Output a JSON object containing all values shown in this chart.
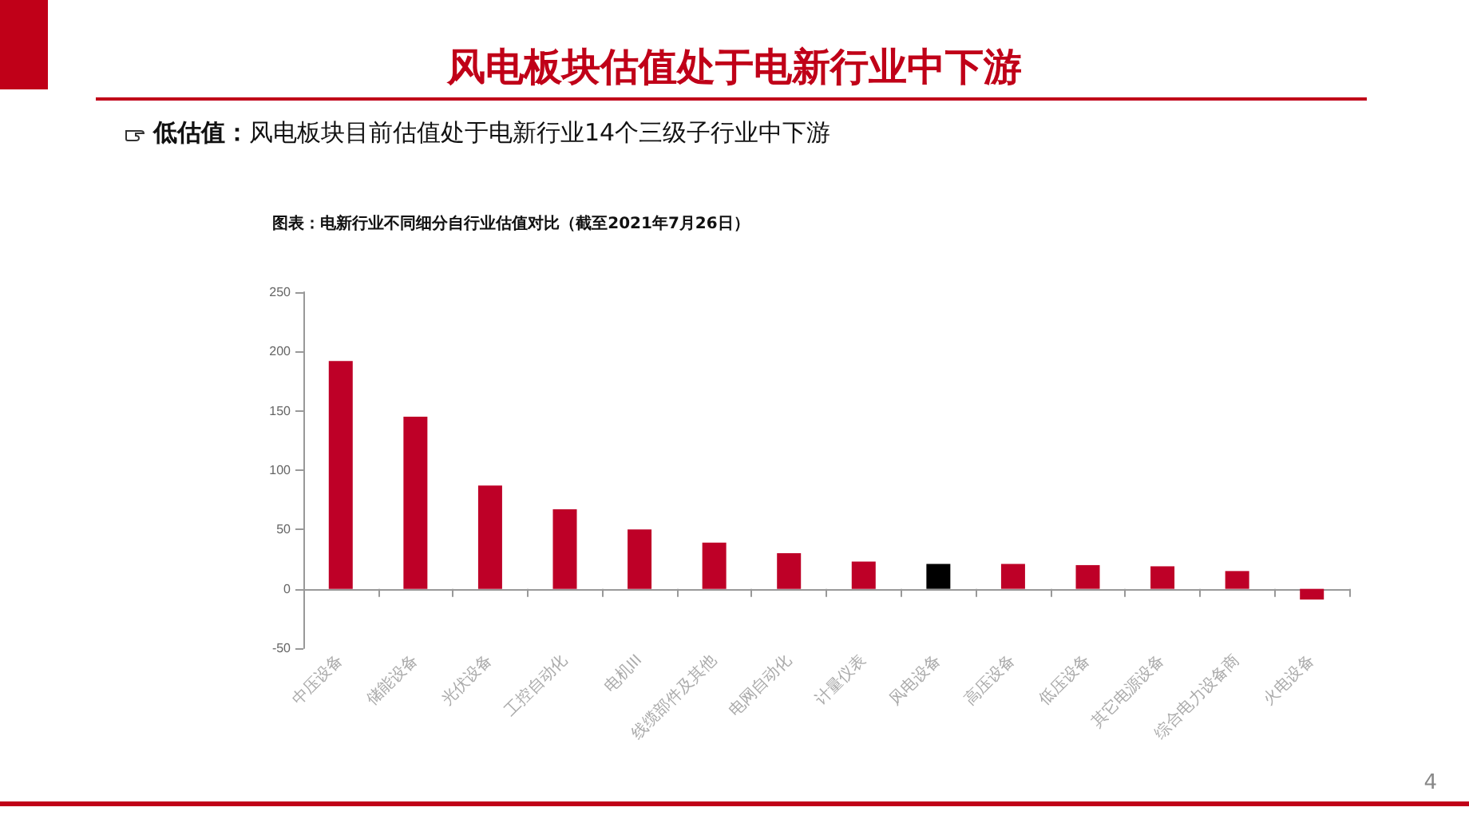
{
  "chart_data": {
    "type": "bar",
    "title": "风电板块估值处于电新行业中下游",
    "subtitle": "低估值：风电板块目前估值处于电新行业14个三级子行业中下游",
    "annotations": [
      "图表：电新行业不同细分自行业估值对比（截至2021年7月26日）",
      "4"
    ],
    "categories": [
      "中压设备",
      "储能设备",
      "光伏设备",
      "工控自动化",
      "电机III",
      "线缆部件及其他",
      "电网自动化",
      "计量仪表",
      "风电设备",
      "高压设备",
      "低压设备",
      "其它电源设备",
      "综合电力设备商",
      "火电设备"
    ],
    "values": [
      192,
      145,
      87,
      67,
      50,
      39,
      30,
      23,
      21,
      21,
      20,
      19,
      15,
      -9
    ],
    "colors": [
      "#be0027",
      "#be0027",
      "#be0027",
      "#be0027",
      "#be0027",
      "#be0027",
      "#be0027",
      "#be0027",
      "#000000",
      "#be0027",
      "#be0027",
      "#be0027",
      "#be0027",
      "#be0027"
    ],
    "ylim": [
      -50,
      250
    ],
    "yticks": [
      -50,
      0,
      50,
      100,
      150,
      200,
      250
    ]
  }
}
